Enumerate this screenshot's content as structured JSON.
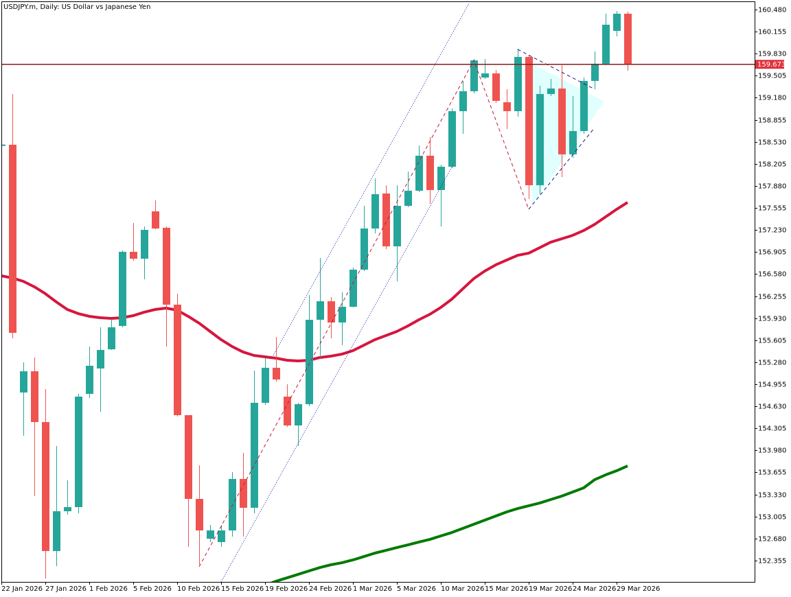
{
  "chart_data": {
    "type": "candlestick",
    "title": "USDJPY.m, Daily:  US Dollar vs Japanese Yen",
    "categories": [
      "22 Jan 2026",
      null,
      null,
      null,
      "27 Jan 2026",
      null,
      null,
      null,
      "1 Feb 2026",
      null,
      null,
      null,
      "5 Feb 2026",
      null,
      null,
      null,
      "10 Feb 2026",
      null,
      null,
      null,
      "15 Feb 2026",
      null,
      null,
      null,
      "19 Feb 2026",
      null,
      null,
      null,
      "24 Feb 2026",
      null,
      null,
      null,
      "1 Mar 2026",
      null,
      null,
      null,
      "5 Mar 2026",
      null,
      null,
      null,
      "10 Mar 2026",
      null,
      null,
      null,
      "15 Mar 2026",
      null,
      null,
      null,
      "19 Mar 2026",
      null,
      null,
      null,
      "24 Mar 2026",
      null,
      null,
      null,
      "29 Mar 2026",
      null
    ],
    "open": [
      158.47,
      158.487,
      154.834,
      155.147,
      154.398,
      152.496,
      153.083,
      153.144,
      154.813,
      155.188,
      155.471,
      155.815,
      156.908,
      156.807,
      157.505,
      157.262,
      156.129,
      154.5,
      153.265,
      152.678,
      152.628,
      152.8,
      153.559,
      153.134,
      154.682,
      155.198,
      154.773,
      154.348,
      154.662,
      155.906,
      156.179,
      155.866,
      156.098,
      156.645,
      157.252,
      157.768,
      156.989,
      157.586,
      157.809,
      158.325,
      157.819,
      158.163,
      158.982,
      159.276,
      159.478,
      159.539,
      159.114,
      158.982,
      159.782,
      157.89,
      159.235,
      159.316,
      158.345,
      158.689,
      159.428,
      159.681,
      160.166,
      160.419
    ],
    "high": [
      158.5,
      159.235,
      155.279,
      155.35,
      154.884,
      154.044,
      153.538,
      154.813,
      155.512,
      155.795,
      155.916,
      156.928,
      157.333,
      157.282,
      157.667,
      157.282,
      156.291,
      154.5,
      153.761,
      152.881,
      152.881,
      153.66,
      153.943,
      155.157,
      155.34,
      155.653,
      154.955,
      154.682,
      156.27,
      156.817,
      156.24,
      156.311,
      156.675,
      157.586,
      157.991,
      157.89,
      157.89,
      158.092,
      158.476,
      158.598,
      158.193,
      159.023,
      159.428,
      159.751,
      159.751,
      159.59,
      159.306,
      159.903,
      159.812,
      159.357,
      159.458,
      159.66,
      159.205,
      159.478,
      159.863,
      160.419,
      160.46,
      160.45
    ],
    "low": [
      158.46,
      155.633,
      154.196,
      153.306,
      152.091,
      152.273,
      153.032,
      153.053,
      154.753,
      154.55,
      155.461,
      155.795,
      156.776,
      156.503,
      157.242,
      155.512,
      154.479,
      152.557,
      152.294,
      152.628,
      152.557,
      152.709,
      152.709,
      153.053,
      154.651,
      154.996,
      154.328,
      154.044,
      154.631,
      155.35,
      155.633,
      155.532,
      156.088,
      156.625,
      157.181,
      156.948,
      156.473,
      157.566,
      157.788,
      157.616,
      157.282,
      158.143,
      158.648,
      159.245,
      159.458,
      159.104,
      158.719,
      158.901,
      157.687,
      157.758,
      159.205,
      158.011,
      158.294,
      158.648,
      159.306,
      159.66,
      160.085,
      159.579
    ],
    "close": [
      158.49,
      155.714,
      155.147,
      154.398,
      152.496,
      153.083,
      153.144,
      154.773,
      155.228,
      155.461,
      155.795,
      156.908,
      156.807,
      157.232,
      157.252,
      156.129,
      154.5,
      153.265,
      152.8,
      152.8,
      152.8,
      153.559,
      153.134,
      154.682,
      155.198,
      155.026,
      154.348,
      154.662,
      155.906,
      156.179,
      155.866,
      156.098,
      156.645,
      157.252,
      157.758,
      156.989,
      157.586,
      157.809,
      158.325,
      157.819,
      158.163,
      158.982,
      159.276,
      159.731,
      159.539,
      159.134,
      158.982,
      159.782,
      157.89,
      159.235,
      159.316,
      158.345,
      158.689,
      159.428,
      159.681,
      160.257,
      160.419,
      159.673
    ],
    "up_color": "#26a69a",
    "down_color": "#ef5350",
    "overlays": [
      {
        "color": "#d6163e",
        "values": [
          156.554,
          156.523,
          156.473,
          156.392,
          156.291,
          156.169,
          156.058,
          155.997,
          155.957,
          155.937,
          155.926,
          155.937,
          155.967,
          156.018,
          156.058,
          156.078,
          156.048,
          155.957,
          155.856,
          155.734,
          155.613,
          155.512,
          155.431,
          155.38,
          155.36,
          155.34,
          155.309,
          155.299,
          155.309,
          155.35,
          155.37,
          155.4,
          155.451,
          155.532,
          155.613,
          155.673,
          155.734,
          155.815,
          155.906,
          155.987,
          156.088,
          156.21,
          156.362,
          156.513,
          156.625,
          156.716,
          156.787,
          156.857,
          156.888,
          156.969,
          157.05,
          157.1,
          157.151,
          157.222,
          157.313,
          157.424,
          157.535,
          157.637
        ]
      },
      {
        "color": "#007a00",
        "values": [
          null,
          null,
          null,
          null,
          null,
          null,
          null,
          null,
          null,
          null,
          null,
          null,
          null,
          null,
          null,
          null,
          null,
          null,
          null,
          null,
          null,
          null,
          null,
          null,
          151.99,
          152.051,
          152.101,
          152.152,
          152.203,
          152.253,
          152.294,
          152.324,
          152.365,
          152.415,
          152.466,
          152.506,
          152.547,
          152.587,
          152.628,
          152.668,
          152.719,
          152.769,
          152.83,
          152.891,
          152.951,
          153.012,
          153.073,
          153.123,
          153.164,
          153.204,
          153.255,
          153.306,
          153.366,
          153.427,
          153.548,
          153.619,
          153.68,
          153.751
        ]
      }
    ],
    "current_price": 159.673,
    "current_price_color": "#8b1a1a",
    "current_label_color": "#e0323c",
    "ylim": [
      152.041,
      160.591
    ],
    "yticks": [
      {
        "value": 160.48,
        "label": "160.480"
      },
      160.155,
      {
        "value": 159.83,
        "label": "159.830"
      },
      159.505,
      {
        "value": 159.18,
        "label": "159.180"
      },
      158.855,
      {
        "value": 158.53,
        "label": "158.530"
      },
      158.205,
      {
        "value": 157.88,
        "label": "157.880"
      },
      157.555,
      {
        "value": 157.23,
        "label": "157.230"
      },
      156.905,
      {
        "value": 156.58,
        "label": "156.580"
      },
      156.255,
      {
        "value": 155.93,
        "label": "155.930"
      },
      155.605,
      {
        "value": 155.28,
        "label": "155.280"
      },
      154.955,
      {
        "value": 154.63,
        "label": "154.630"
      },
      154.305,
      {
        "value": 153.98,
        "label": "153.980"
      },
      153.655,
      {
        "value": 153.33,
        "label": "153.330"
      },
      153.005,
      {
        "value": 152.68,
        "label": "152.680"
      },
      152.355
    ]
  }
}
